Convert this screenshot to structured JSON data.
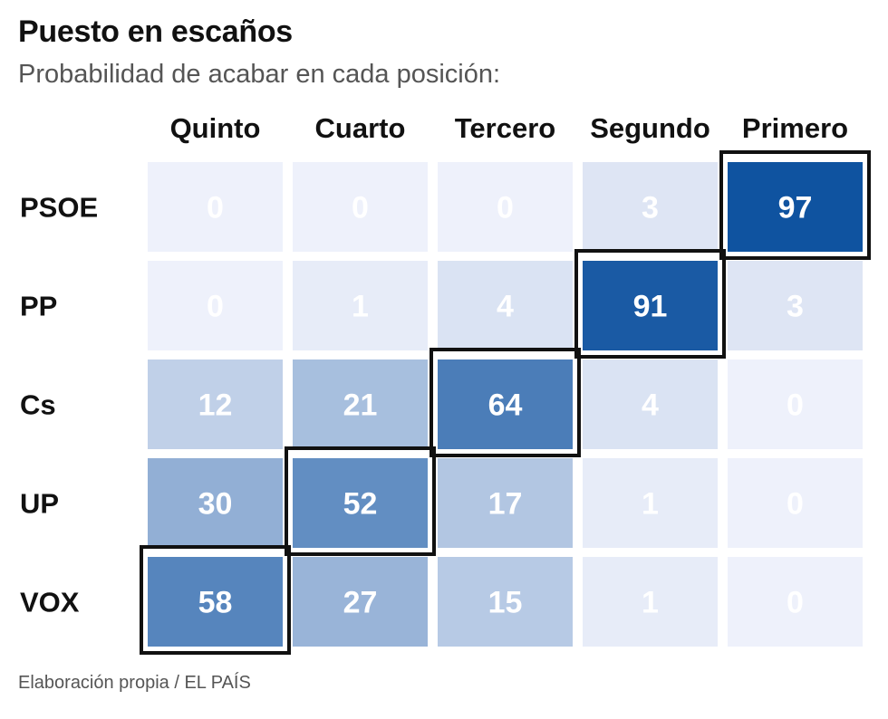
{
  "header": {
    "title": "Puesto en escaños",
    "subtitle": "Probabilidad de acabar en cada posición:"
  },
  "footer": {
    "source": "Elaboración propia / EL PAÍS"
  },
  "colors": {
    "low": "#eef1fb",
    "high": "#0a4f9e",
    "text": "#ffffff",
    "highlight_border": "#111111"
  },
  "chart_data": {
    "type": "heatmap",
    "title": "Puesto en escaños",
    "subtitle": "Probabilidad de acabar en cada posición:",
    "xlabel": "",
    "ylabel": "",
    "columns": [
      "Quinto",
      "Cuarto",
      "Tercero",
      "Segundo",
      "Primero"
    ],
    "rows": [
      "PSOE",
      "PP",
      "Cs",
      "UP",
      "VOX"
    ],
    "values": [
      [
        0,
        0,
        0,
        3,
        97
      ],
      [
        0,
        1,
        4,
        91,
        3
      ],
      [
        12,
        21,
        64,
        4,
        0
      ],
      [
        30,
        52,
        17,
        1,
        0
      ],
      [
        58,
        27,
        15,
        1,
        0
      ]
    ],
    "highlighted": [
      [
        0,
        4
      ],
      [
        1,
        3
      ],
      [
        2,
        2
      ],
      [
        3,
        1
      ],
      [
        4,
        0
      ]
    ],
    "value_range": [
      0,
      100
    ]
  }
}
